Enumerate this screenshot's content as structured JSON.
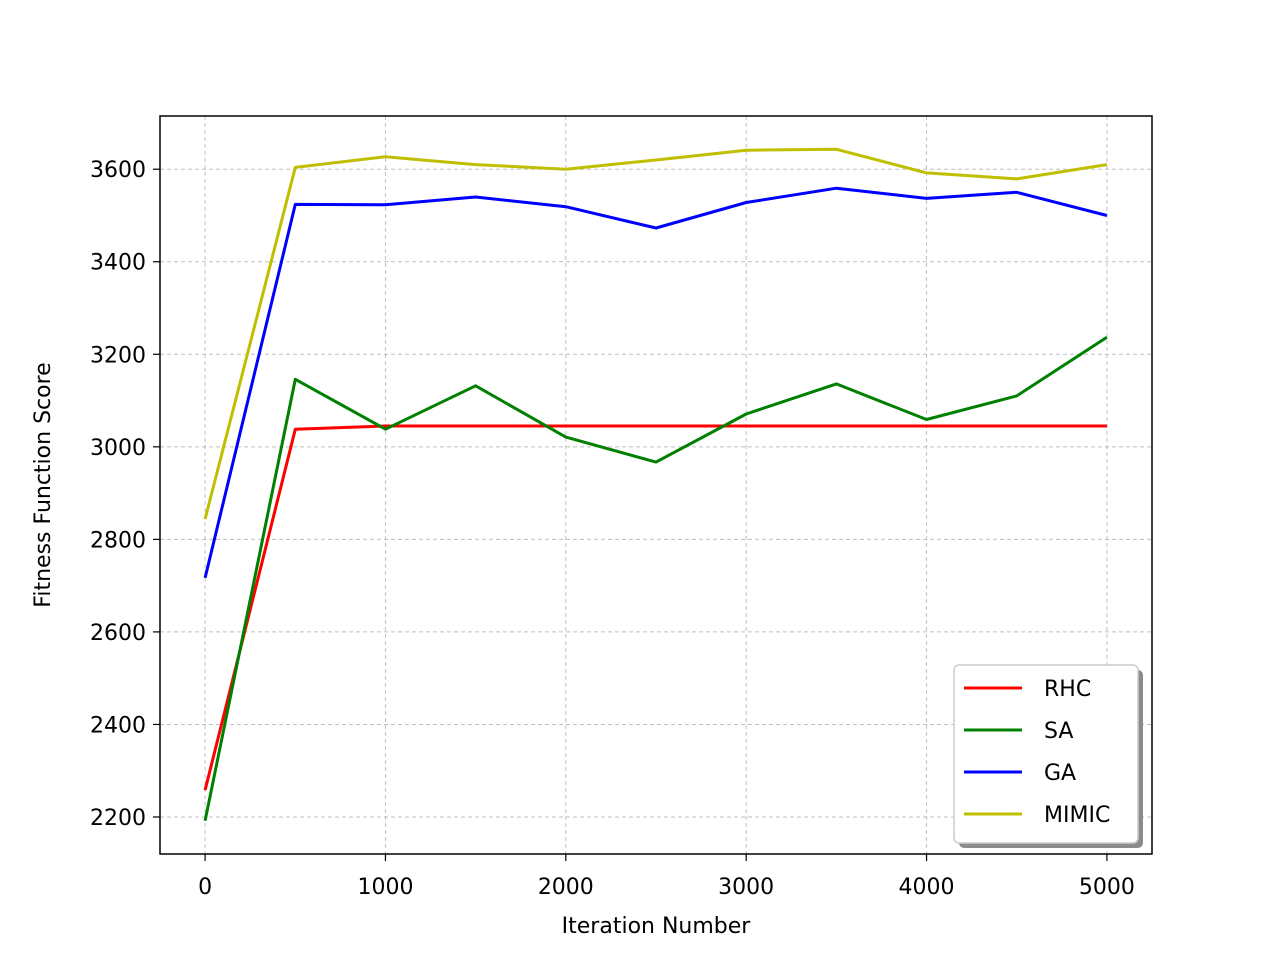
{
  "chart_data": {
    "type": "line",
    "title": "",
    "xlabel": "Iteration Number",
    "ylabel": "Fitness Function Score",
    "x": [
      0,
      500,
      1000,
      1500,
      2000,
      2500,
      3000,
      3500,
      4000,
      4500,
      5000
    ],
    "xlim": [
      -250,
      5250
    ],
    "ylim": [
      2120,
      3715
    ],
    "xticks": [
      0,
      1000,
      2000,
      3000,
      4000,
      5000
    ],
    "xtick_labels": [
      "0",
      "1000",
      "2000",
      "3000",
      "4000",
      "5000"
    ],
    "yticks": [
      2200,
      2400,
      2600,
      2800,
      3000,
      3200,
      3400,
      3600
    ],
    "ytick_labels": [
      "2200",
      "2400",
      "2600",
      "2800",
      "3000",
      "3200",
      "3400",
      "3600"
    ],
    "grid": true,
    "legend_position": "lower-right",
    "series": [
      {
        "name": "RHC",
        "color": "#ff0000",
        "values": [
          2258,
          3038,
          3045,
          3045,
          3045,
          3045,
          3045,
          3045,
          3045,
          3045,
          3045
        ]
      },
      {
        "name": "SA",
        "color": "#008000",
        "values": [
          2192,
          3146,
          3038,
          3132,
          3021,
          2967,
          3071,
          3136,
          3059,
          3110,
          3237
        ]
      },
      {
        "name": "GA",
        "color": "#0000ff",
        "values": [
          2717,
          3524,
          3523,
          3540,
          3519,
          3473,
          3528,
          3559,
          3537,
          3550,
          3500
        ]
      },
      {
        "name": "MIMIC",
        "color": "#bfbf00",
        "values": [
          2844,
          3604,
          3627,
          3610,
          3600,
          3620,
          3641,
          3643,
          3592,
          3579,
          3610
        ]
      }
    ]
  }
}
